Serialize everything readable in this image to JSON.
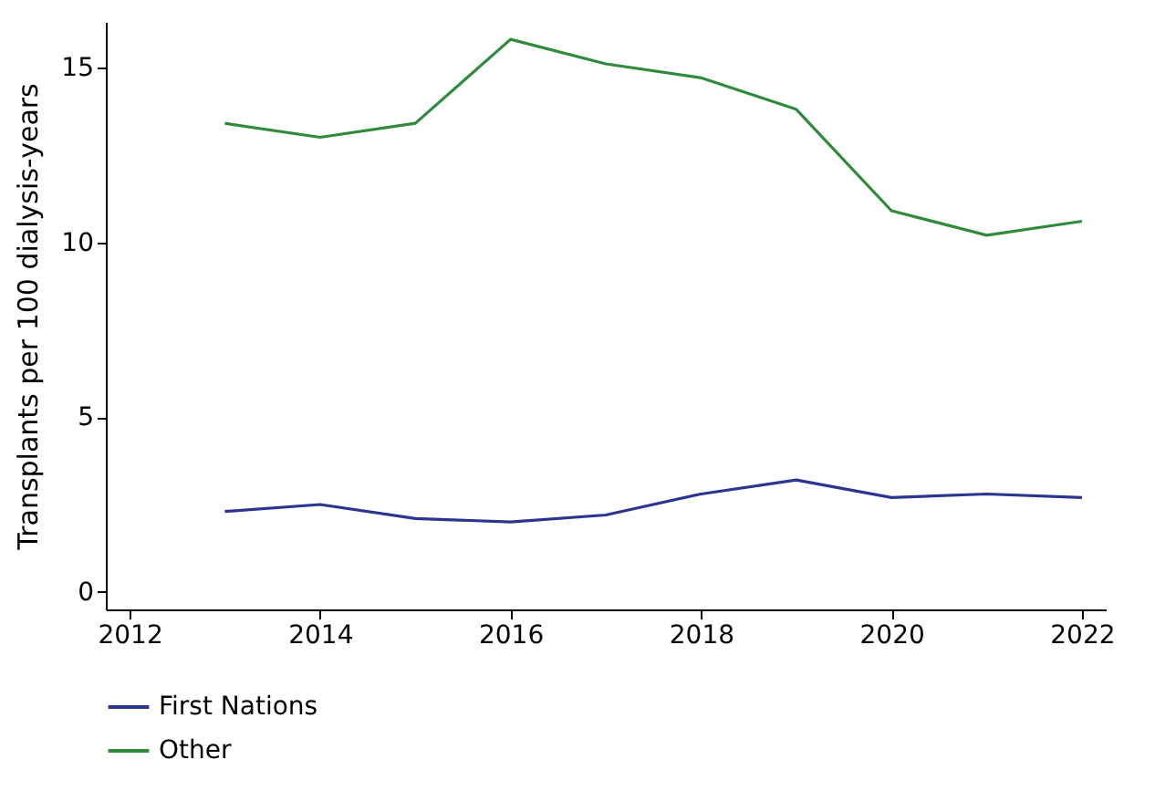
{
  "chart_data": {
    "type": "line",
    "ylabel": "Transplants per 100 dialysis-years",
    "x": [
      2013,
      2014,
      2015,
      2016,
      2017,
      2018,
      2019,
      2020,
      2021,
      2022
    ],
    "series": [
      {
        "name": "First Nations",
        "color": "#2b3490",
        "values": [
          2.3,
          2.5,
          2.1,
          2.0,
          2.2,
          2.8,
          3.2,
          2.7,
          2.8,
          2.7
        ]
      },
      {
        "name": "Other",
        "color": "#2e8b3a",
        "values": [
          13.4,
          13.0,
          13.4,
          15.8,
          15.1,
          14.7,
          13.8,
          10.9,
          10.2,
          10.6
        ]
      }
    ],
    "xlim": [
      2011.75,
      2022.25
    ],
    "xticks": [
      2012,
      2014,
      2016,
      2018,
      2020,
      2022
    ],
    "ylim": [
      -0.5,
      16.3
    ],
    "yticks": [
      0,
      5,
      10,
      15
    ],
    "legend": "bottom"
  }
}
